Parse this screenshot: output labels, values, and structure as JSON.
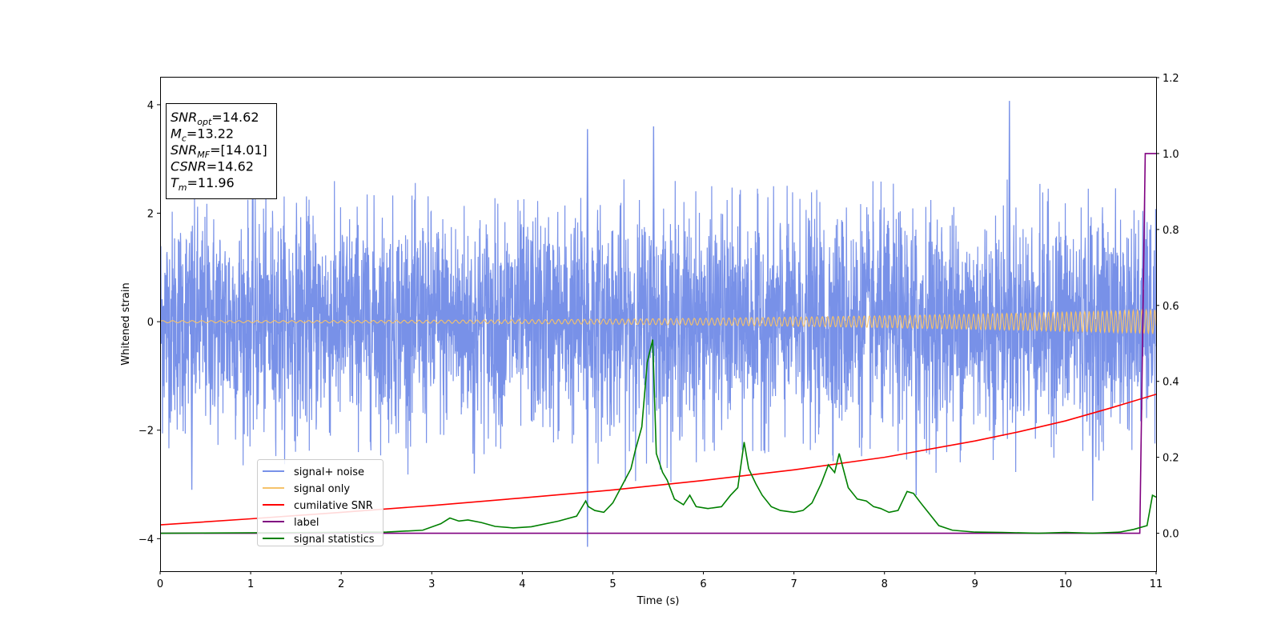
{
  "chart_data": {
    "type": "line",
    "xlabel": "Time (s)",
    "ylabel": "Whitened strain",
    "xlim": [
      0,
      11
    ],
    "ylim_left": [
      -4.6,
      4.5
    ],
    "ylim_right": [
      -0.1,
      1.2
    ],
    "x_ticks": [
      "0",
      "1",
      "2",
      "3",
      "4",
      "5",
      "6",
      "7",
      "8",
      "9",
      "10",
      "11"
    ],
    "y_ticks_left": [
      "4",
      "2",
      "0",
      "−2",
      "−4"
    ],
    "y_ticks_right": [
      "1.2",
      "1.0",
      "0.8",
      "0.6",
      "0.4",
      "0.2",
      "0.0"
    ],
    "grid": false,
    "legend_position": "lower-left",
    "info_box": {
      "position": "upper-left",
      "lines": [
        {
          "sym": "SNR",
          "sub": "opt",
          "value": "=14.62"
        },
        {
          "sym": "M",
          "sub": "c",
          "value": "=13.22"
        },
        {
          "sym": "SNR",
          "sub": "MF",
          "value": "=[14.01]"
        },
        {
          "sym": "CSNR",
          "sub": "",
          "value": "=14.62"
        },
        {
          "sym": "T",
          "sub": "m",
          "value": "=11.96"
        }
      ]
    },
    "series": [
      {
        "name": "signal+ noise",
        "axis": "left",
        "color": "#7891e8",
        "kind": "noise",
        "sigma": 1.0,
        "envelope": [
          [
            0,
            2.2
          ],
          [
            1,
            2.3
          ],
          [
            2,
            2.3
          ],
          [
            3,
            2.3
          ],
          [
            4,
            2.2
          ],
          [
            5,
            3.0
          ],
          [
            6,
            2.4
          ],
          [
            7,
            2.3
          ],
          [
            8,
            2.5
          ],
          [
            9,
            2.6
          ],
          [
            10,
            2.4
          ],
          [
            11,
            2.3
          ]
        ],
        "peaks": [
          [
            0.35,
            -3.1
          ],
          [
            4.72,
            -4.15
          ],
          [
            4.72,
            3.55
          ],
          [
            5.45,
            3.6
          ],
          [
            9.38,
            4.07
          ],
          [
            10.3,
            -3.3
          ],
          [
            3.47,
            -2.8
          ],
          [
            8.35,
            -3.2
          ]
        ]
      },
      {
        "name": "signal only",
        "axis": "left",
        "color": "#f5c26b",
        "kind": "chirp",
        "amp_start": 0.02,
        "amp_end": 0.22
      },
      {
        "name": "cumilative SNR",
        "axis": "right",
        "color": "#ff0000",
        "x": [
          0,
          1,
          2,
          3,
          4,
          5,
          6,
          7,
          8,
          9,
          9.5,
          10,
          10.5,
          11
        ],
        "y": [
          0.022,
          0.038,
          0.055,
          0.073,
          0.093,
          0.114,
          0.139,
          0.167,
          0.2,
          0.243,
          0.268,
          0.296,
          0.33,
          0.366
        ]
      },
      {
        "name": "label",
        "axis": "right",
        "color": "#800080",
        "x": [
          0,
          10.82,
          10.88,
          11
        ],
        "y": [
          0,
          0,
          1.0,
          1.0
        ]
      },
      {
        "name": "signal statistics",
        "axis": "right",
        "color": "#008000",
        "x": [
          0,
          2.5,
          2.9,
          3.1,
          3.2,
          3.3,
          3.4,
          3.55,
          3.7,
          3.9,
          4.1,
          4.4,
          4.6,
          4.7,
          4.73,
          4.8,
          4.9,
          5.0,
          5.1,
          5.2,
          5.25,
          5.32,
          5.38,
          5.44,
          5.48,
          5.55,
          5.6,
          5.68,
          5.78,
          5.85,
          5.92,
          6.05,
          6.2,
          6.3,
          6.38,
          6.45,
          6.5,
          6.58,
          6.65,
          6.75,
          6.85,
          7.0,
          7.1,
          7.2,
          7.3,
          7.38,
          7.45,
          7.5,
          7.6,
          7.7,
          7.8,
          7.88,
          7.96,
          8.05,
          8.15,
          8.25,
          8.32,
          8.4,
          8.5,
          8.6,
          8.75,
          9.0,
          9.3,
          9.7,
          10.0,
          10.3,
          10.6,
          10.75,
          10.9,
          10.96,
          11.0
        ],
        "y": [
          0.0,
          0.003,
          0.008,
          0.025,
          0.04,
          0.032,
          0.035,
          0.028,
          0.018,
          0.014,
          0.017,
          0.032,
          0.045,
          0.085,
          0.07,
          0.06,
          0.055,
          0.08,
          0.125,
          0.17,
          0.22,
          0.28,
          0.45,
          0.51,
          0.21,
          0.16,
          0.14,
          0.09,
          0.075,
          0.1,
          0.07,
          0.065,
          0.07,
          0.1,
          0.12,
          0.24,
          0.17,
          0.13,
          0.1,
          0.07,
          0.06,
          0.055,
          0.06,
          0.08,
          0.13,
          0.18,
          0.16,
          0.21,
          0.12,
          0.09,
          0.085,
          0.07,
          0.065,
          0.055,
          0.06,
          0.11,
          0.105,
          0.08,
          0.05,
          0.02,
          0.008,
          0.003,
          0.002,
          0.0,
          0.002,
          0.0,
          0.003,
          0.01,
          0.02,
          0.1,
          0.095
        ]
      }
    ]
  }
}
